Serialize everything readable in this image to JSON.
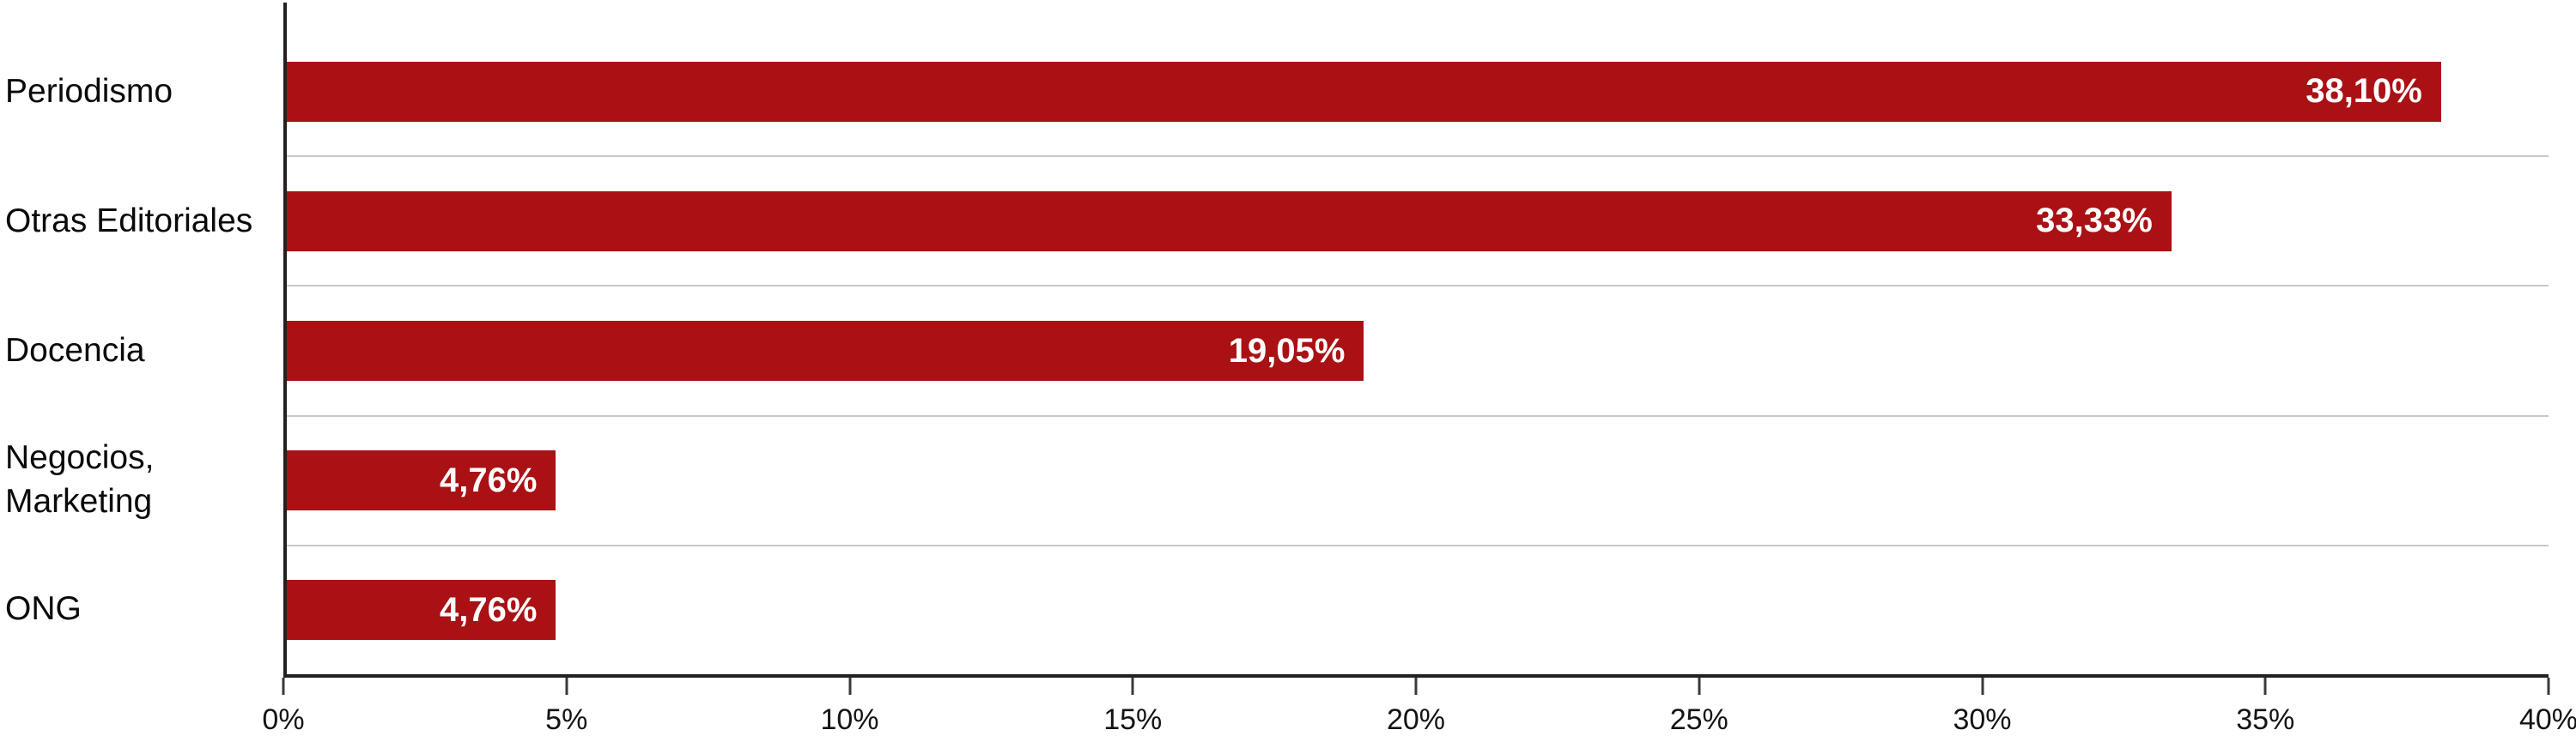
{
  "chart_data": {
    "type": "bar",
    "orientation": "horizontal",
    "categories": [
      "Periodismo",
      "Otras Editoriales",
      "Docencia",
      "Negocios, Marketing",
      "ONG"
    ],
    "values": [
      38.1,
      33.33,
      19.05,
      4.76,
      4.76
    ],
    "value_labels": [
      "38,10%",
      "33,33%",
      "19,05%",
      "4,76%",
      "4,76%"
    ],
    "xlim": [
      0,
      40
    ],
    "x_tick_labels": [
      "0%",
      "5%",
      "10%",
      "15%",
      "20%",
      "25%",
      "30%",
      "35%",
      "40%"
    ],
    "grid": "row-separators-on",
    "legend": "none",
    "colors": {
      "bar": "#aa1115",
      "axis": "#242021",
      "grid_line": "#c9c9c9",
      "tick": "#3a3a3a",
      "value_label": "#ffffff",
      "category_label": "#0a0a0a",
      "tick_label": "#141414",
      "background": "#ffffff"
    }
  }
}
